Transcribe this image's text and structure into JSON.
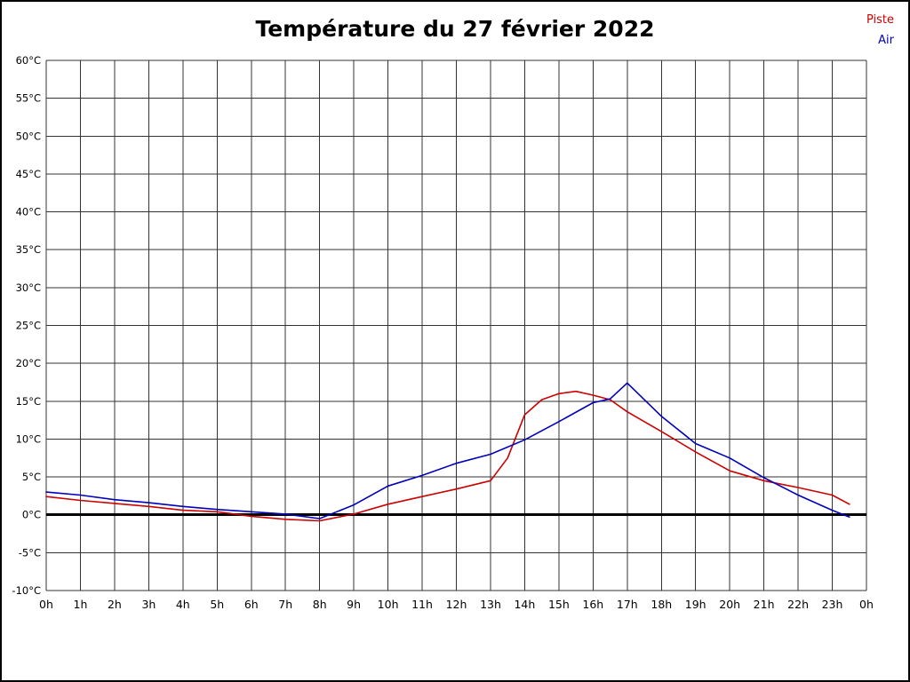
{
  "title": "Température du 27 février 2022",
  "legend": [
    {
      "label": "Piste",
      "color": "#cc0000"
    },
    {
      "label": "Air",
      "color": "#0000bb"
    }
  ],
  "chart_data": {
    "type": "line",
    "title": "Température du 27 février 2022",
    "xlabel": "",
    "ylabel": "",
    "xlim": [
      0,
      24
    ],
    "ylim": [
      -10,
      60
    ],
    "grid": true,
    "grid_color": "#333333",
    "zero_line_color": "#000000",
    "axis_text_color": "#000000",
    "background_color": "#ffffff",
    "legend_position": "top-right",
    "y_tick_values": [
      60,
      55,
      50,
      45,
      40,
      35,
      30,
      25,
      20,
      15,
      10,
      5,
      0,
      -5,
      -10
    ],
    "y_tick_labels": [
      "60°C",
      "55°C",
      "50°C",
      "45°C",
      "40°C",
      "35°C",
      "30°C",
      "25°C",
      "20°C",
      "15°C",
      "10°C",
      "5°C",
      "0°C",
      "-5°C",
      "-10°C"
    ],
    "x_tick_values": [
      0,
      1,
      2,
      3,
      4,
      5,
      6,
      7,
      8,
      9,
      10,
      11,
      12,
      13,
      14,
      15,
      16,
      17,
      18,
      19,
      20,
      21,
      22,
      23,
      24
    ],
    "x_tick_labels": [
      "0h",
      "1h",
      "2h",
      "3h",
      "4h",
      "5h",
      "6h",
      "7h",
      "8h",
      "9h",
      "10h",
      "11h",
      "12h",
      "13h",
      "14h",
      "15h",
      "16h",
      "17h",
      "18h",
      "19h",
      "20h",
      "21h",
      "22h",
      "23h",
      "0h"
    ],
    "series": [
      {
        "name": "Piste",
        "color": "#cc0000",
        "x": [
          0,
          1,
          2,
          3,
          4,
          5,
          6,
          7,
          8,
          9,
          10,
          11,
          12,
          13,
          13.5,
          14,
          14.5,
          15,
          15.5,
          16,
          16.5,
          17,
          18,
          19,
          20,
          21,
          22,
          23,
          23.5
        ],
        "values": [
          2.4,
          1.9,
          1.5,
          1.1,
          0.6,
          0.4,
          -0.2,
          -0.6,
          -0.8,
          0.1,
          1.4,
          2.4,
          3.4,
          4.5,
          7.5,
          13.2,
          15.2,
          16.0,
          16.3,
          15.8,
          15.2,
          13.6,
          11.0,
          8.3,
          5.8,
          4.5,
          3.6,
          2.6,
          1.4
        ]
      },
      {
        "name": "Air",
        "color": "#0000bb",
        "x": [
          0,
          1,
          2,
          3,
          4,
          5,
          6,
          7,
          8,
          9,
          10,
          11,
          12,
          13,
          14,
          15,
          16,
          16.5,
          17,
          18,
          19,
          20,
          21,
          22,
          23,
          23.5
        ],
        "values": [
          3.0,
          2.6,
          2.0,
          1.6,
          1.1,
          0.7,
          0.4,
          0.1,
          -0.5,
          1.3,
          3.8,
          5.2,
          6.8,
          8.0,
          9.9,
          12.3,
          14.8,
          15.3,
          17.4,
          13.0,
          9.4,
          7.5,
          4.9,
          2.6,
          0.6,
          -0.3
        ]
      }
    ]
  }
}
